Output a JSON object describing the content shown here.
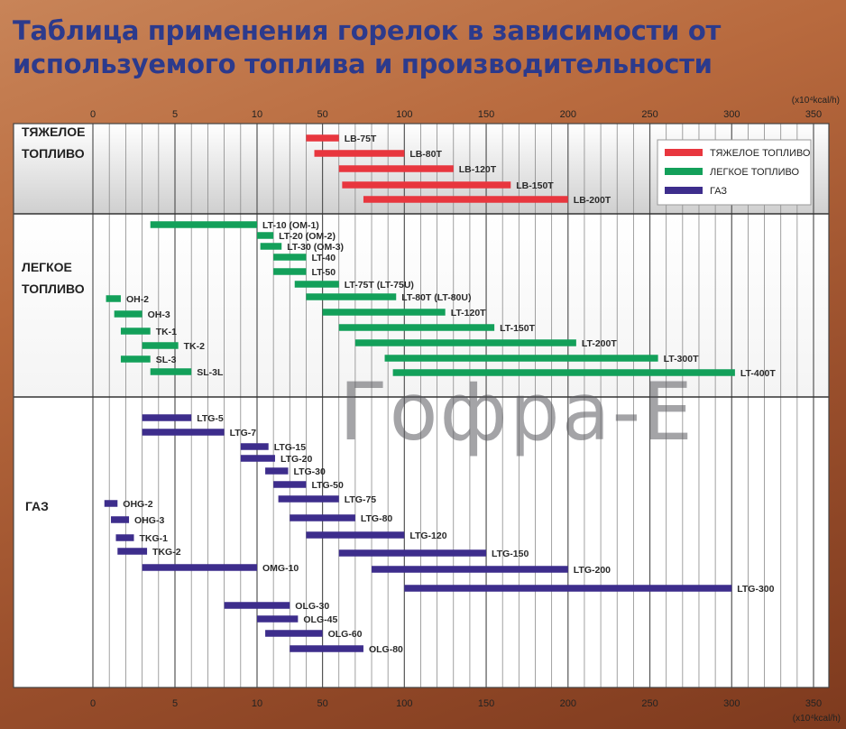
{
  "title": "Таблица применения горелок в зависимости от используемого топлива и производительности",
  "watermark": "Гофра-Е",
  "colors": {
    "heavy": "#e8363e",
    "light": "#13a05a",
    "gas": "#3d2d8c",
    "section_heavy_bg": "#cfcfcf",
    "section_light_bg": "#f4f4f4",
    "section_gas_bg": "#ffffff"
  },
  "chart_data": {
    "type": "bar",
    "orientation": "horizontal-range",
    "title": "Таблица применения горелок в зависимости от используемого топлива и производительности",
    "axis": {
      "unit_label": "(x10⁴kcal/h)",
      "unit_label_bottom": "(x10⁴kcal/h)",
      "scale": "piecewise-linear: 0–10 and 10–350 with different spacing",
      "ticks": [
        0,
        5,
        10,
        50,
        100,
        150,
        200,
        250,
        300,
        350
      ],
      "minor_gridlines": [
        1,
        2,
        3,
        4,
        6,
        7,
        8,
        9,
        20,
        30,
        40,
        60,
        70,
        80,
        90,
        110,
        120,
        130,
        140,
        160,
        170,
        180,
        190,
        210,
        220,
        230,
        240,
        260,
        270,
        280,
        290,
        310,
        320,
        330,
        340
      ],
      "range": [
        0,
        350
      ]
    },
    "legend": {
      "position": "top-right",
      "items": [
        {
          "label": "ТЯЖЕЛОЕ ТОПЛИВО",
          "color": "#e8363e"
        },
        {
          "label": "ЛЕГКОЕ ТОПЛИВО",
          "color": "#13a05a"
        },
        {
          "label": "ГАЗ",
          "color": "#3d2d8c"
        }
      ]
    },
    "sections": [
      {
        "label": "ТЯЖЕЛОЕ\nТОПЛИВО",
        "label_lines": [
          "ТЯЖЕЛОЕ",
          "ТОПЛИВО"
        ],
        "color_key": "heavy",
        "bars": [
          {
            "name": "LB-75T",
            "start": 40,
            "end": 60
          },
          {
            "name": "LB-80T",
            "start": 45,
            "end": 100
          },
          {
            "name": "LB-120T",
            "start": 60,
            "end": 130
          },
          {
            "name": "LB-150T",
            "start": 62,
            "end": 165
          },
          {
            "name": "LB-200T",
            "start": 75,
            "end": 200
          }
        ]
      },
      {
        "label": "ЛЕГКОЕ\nТОПЛИВО",
        "label_lines": [
          "ЛЕГКОЕ",
          "ТОПЛИВО"
        ],
        "color_key": "light",
        "bars": [
          {
            "name": "LT-10 (OM-1)",
            "start": 3.5,
            "end": 10
          },
          {
            "name": "LT-20 (OM-2)",
            "start": 10,
            "end": 20
          },
          {
            "name": "LT-30 (OM-3)",
            "start": 12,
            "end": 25
          },
          {
            "name": "LT-40",
            "start": 20,
            "end": 40
          },
          {
            "name": "LT-50",
            "start": 20,
            "end": 40
          },
          {
            "name": "LT-75T (LT-75U)",
            "start": 33,
            "end": 60
          },
          {
            "name": "LT-80T (LT-80U)",
            "start": 40,
            "end": 95
          },
          {
            "name": "LT-120T",
            "start": 50,
            "end": 125
          },
          {
            "name": "LT-150T",
            "start": 60,
            "end": 155
          },
          {
            "name": "LT-200T",
            "start": 70,
            "end": 205
          },
          {
            "name": "LT-300T",
            "start": 88,
            "end": 255
          },
          {
            "name": "LT-400T",
            "start": 93,
            "end": 302
          },
          {
            "name": "OH-2",
            "start": 0.8,
            "end": 1.7
          },
          {
            "name": "OH-3",
            "start": 1.3,
            "end": 3
          },
          {
            "name": "TK-1",
            "start": 1.7,
            "end": 3.5
          },
          {
            "name": "TK-2",
            "start": 3,
            "end": 5.2
          },
          {
            "name": "SL-3",
            "start": 1.7,
            "end": 3.5
          },
          {
            "name": "SL-3L",
            "start": 3.5,
            "end": 6
          }
        ]
      },
      {
        "label": "ГАЗ",
        "label_lines": [
          "ГАЗ"
        ],
        "color_key": "gas",
        "bars": [
          {
            "name": "LTG-5",
            "start": 3,
            "end": 6
          },
          {
            "name": "LTG-7",
            "start": 3,
            "end": 8
          },
          {
            "name": "LTG-15",
            "start": 9,
            "end": 17
          },
          {
            "name": "LTG-20",
            "start": 9,
            "end": 21
          },
          {
            "name": "LTG-30",
            "start": 15,
            "end": 29
          },
          {
            "name": "LTG-50",
            "start": 20,
            "end": 40
          },
          {
            "name": "LTG-75",
            "start": 23,
            "end": 60
          },
          {
            "name": "LTG-80",
            "start": 30,
            "end": 70
          },
          {
            "name": "LTG-120",
            "start": 40,
            "end": 100
          },
          {
            "name": "LTG-150",
            "start": 60,
            "end": 150
          },
          {
            "name": "LTG-200",
            "start": 80,
            "end": 200
          },
          {
            "name": "LTG-300",
            "start": 100,
            "end": 300
          },
          {
            "name": "OHG-2",
            "start": 0.7,
            "end": 1.5
          },
          {
            "name": "OHG-3",
            "start": 1.1,
            "end": 2.2
          },
          {
            "name": "TKG-1",
            "start": 1.4,
            "end": 2.5
          },
          {
            "name": "TKG-2",
            "start": 1.5,
            "end": 3.3
          },
          {
            "name": "OMG-10",
            "start": 3,
            "end": 10
          },
          {
            "name": "OLG-30",
            "start": 8,
            "end": 30
          },
          {
            "name": "OLG-45",
            "start": 10,
            "end": 35
          },
          {
            "name": "OLG-60",
            "start": 15,
            "end": 50
          },
          {
            "name": "OLG-80",
            "start": 30,
            "end": 75
          }
        ]
      }
    ]
  }
}
